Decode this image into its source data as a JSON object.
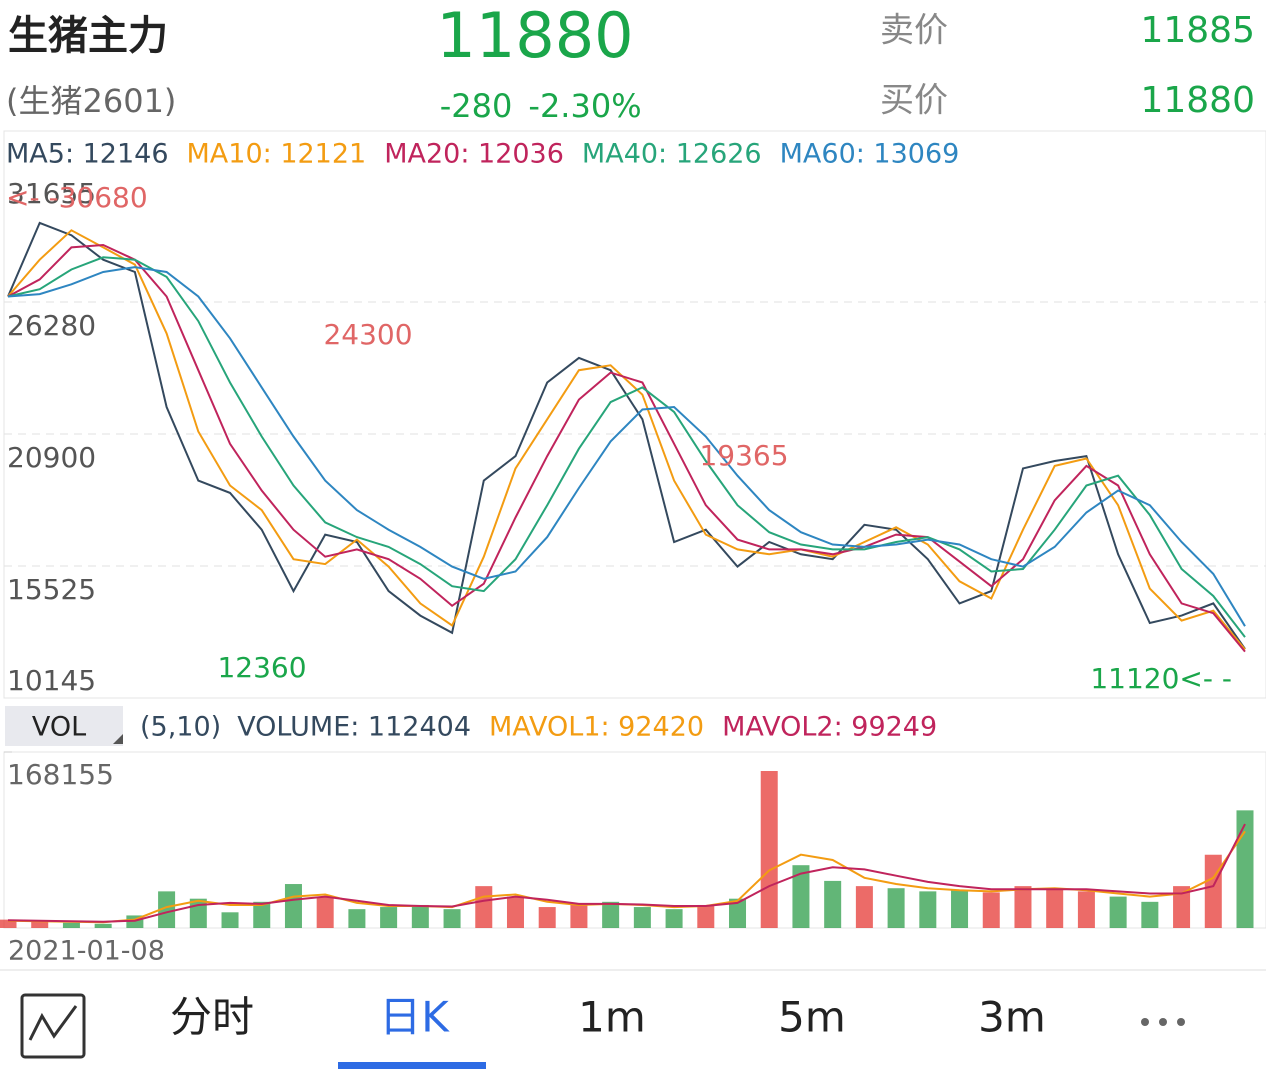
{
  "header": {
    "name": "生猪主力",
    "code": "(生猪2601)",
    "price": "11880",
    "change": "-280",
    "change_pct": "-2.30%",
    "ask_label": "卖价",
    "ask": "11885",
    "bid_label": "买价",
    "bid": "11880"
  },
  "chart_data": [
    {
      "type": "line",
      "ylim": [
        10145,
        31655
      ],
      "yticks": [
        31655,
        26280,
        20900,
        15525,
        10145
      ],
      "grid": true,
      "annotations": [
        {
          "text": "<- -30680",
          "color": "#e06666"
        },
        {
          "text": "24300",
          "color": "#e06666"
        },
        {
          "text": "19365",
          "color": "#e06666"
        },
        {
          "text": "12360",
          "color": "#1aa64a"
        },
        {
          "text": "11120<- -",
          "color": "#1aa64a"
        }
      ],
      "series": [
        {
          "name": "MA5: 12146",
          "color": "#34495e",
          "values": [
            26500,
            29500,
            29000,
            28000,
            27500,
            22000,
            19000,
            18500,
            17000,
            14500,
            16800,
            16500,
            14500,
            13500,
            12800,
            19000,
            20000,
            23000,
            24000,
            23500,
            21500,
            16500,
            17000,
            15500,
            16500,
            16000,
            15800,
            17200,
            17000,
            15800,
            14000,
            14500,
            19500,
            19800,
            20000,
            16000,
            13200,
            13500,
            14000,
            12146
          ]
        },
        {
          "name": "MA10: 12121",
          "color": "#f39c12",
          "values": [
            26500,
            28000,
            29200,
            28500,
            27800,
            25000,
            21000,
            18800,
            17800,
            15800,
            15600,
            16600,
            15500,
            14000,
            13100,
            15900,
            19500,
            21500,
            23500,
            23700,
            22500,
            19000,
            16800,
            16200,
            16000,
            16200,
            15900,
            16500,
            17100,
            16400,
            14900,
            14200,
            17000,
            19600,
            19900,
            18000,
            14600,
            13300,
            13700,
            12121
          ]
        },
        {
          "name": "MA20: 12036",
          "color": "#c0245c",
          "values": [
            26500,
            27200,
            28500,
            28600,
            28000,
            26500,
            23500,
            20500,
            18600,
            17000,
            15900,
            16200,
            15800,
            15000,
            13900,
            14800,
            17500,
            20000,
            22300,
            23400,
            23000,
            20500,
            18000,
            16600,
            16200,
            16200,
            16000,
            16300,
            16800,
            16700,
            15700,
            14700,
            15800,
            18200,
            19600,
            18800,
            16000,
            14000,
            13600,
            12036
          ]
        },
        {
          "name": "MA40: 12626",
          "color": "#27a57a",
          "values": [
            26500,
            26800,
            27600,
            28100,
            28000,
            27300,
            25500,
            23000,
            20800,
            18800,
            17300,
            16700,
            16300,
            15600,
            14700,
            14500,
            15800,
            18000,
            20300,
            22200,
            22800,
            21800,
            19800,
            18000,
            16900,
            16400,
            16200,
            16200,
            16500,
            16700,
            16200,
            15300,
            15400,
            17000,
            18800,
            19200,
            17600,
            15400,
            14300,
            12626
          ]
        },
        {
          "name": "MA60: 13069",
          "color": "#2e86c1",
          "values": [
            26500,
            26600,
            27000,
            27500,
            27700,
            27500,
            26500,
            24800,
            22800,
            20800,
            19000,
            17800,
            17000,
            16300,
            15500,
            15000,
            15300,
            16700,
            18700,
            20600,
            21900,
            22000,
            20800,
            19200,
            17800,
            16900,
            16400,
            16300,
            16400,
            16600,
            16400,
            15800,
            15500,
            16300,
            17700,
            18600,
            18000,
            16500,
            15200,
            13069
          ]
        }
      ]
    },
    {
      "type": "bar",
      "legend_title": "VOL",
      "params": "(5,10)",
      "categories": [
        "2021-01-08",
        null,
        null,
        null,
        null,
        null,
        null,
        null,
        null,
        null,
        null,
        null,
        null,
        null,
        null,
        null,
        null,
        null,
        null,
        null,
        null,
        null,
        null,
        null,
        null,
        null,
        null,
        null,
        null,
        null,
        null,
        null,
        null,
        null,
        null,
        null,
        null,
        null,
        null,
        null
      ],
      "ylim": [
        0,
        168155
      ],
      "yticks": [
        168155
      ],
      "up_color": "#e53935",
      "down_color": "#2e9e4a",
      "series": [
        {
          "name": "VOLUME: 112404",
          "color": "#34495e",
          "values": [
            8000,
            6000,
            5000,
            4000,
            12000,
            35000,
            28000,
            15000,
            25000,
            42000,
            30000,
            18000,
            20000,
            22000,
            18000,
            40000,
            30000,
            20000,
            22000,
            25000,
            20000,
            18000,
            22000,
            28000,
            150000,
            60000,
            45000,
            40000,
            38000,
            35000,
            36000,
            34000,
            40000,
            38000,
            35000,
            30000,
            25000,
            40000,
            70000,
            112404
          ]
        },
        {
          "name": "MAVOL1: 92420",
          "color": "#f39c12",
          "values": [
            7000,
            6500,
            6000,
            5500,
            8000,
            20000,
            26000,
            22000,
            22000,
            30000,
            32000,
            24000,
            21000,
            21000,
            20000,
            30000,
            32000,
            25000,
            22000,
            23000,
            22000,
            20000,
            21000,
            26000,
            55000,
            70000,
            65000,
            48000,
            42000,
            38000,
            36000,
            35000,
            37000,
            38000,
            36000,
            33000,
            30000,
            33000,
            48000,
            92420
          ]
        },
        {
          "name": "MAVOL2: 99249",
          "color": "#c0245c",
          "values": [
            7500,
            7000,
            6500,
            6000,
            7000,
            15000,
            22000,
            24000,
            23000,
            27000,
            30000,
            26000,
            22000,
            21000,
            20500,
            26000,
            30000,
            27000,
            23000,
            23000,
            22500,
            21000,
            21000,
            24000,
            40000,
            52000,
            58000,
            56000,
            50000,
            44000,
            40000,
            37000,
            37000,
            37000,
            37000,
            35000,
            33000,
            33000,
            40000,
            99249
          ]
        }
      ]
    }
  ],
  "tabs": [
    "分时",
    "日K",
    "1m",
    "5m",
    "3m"
  ]
}
